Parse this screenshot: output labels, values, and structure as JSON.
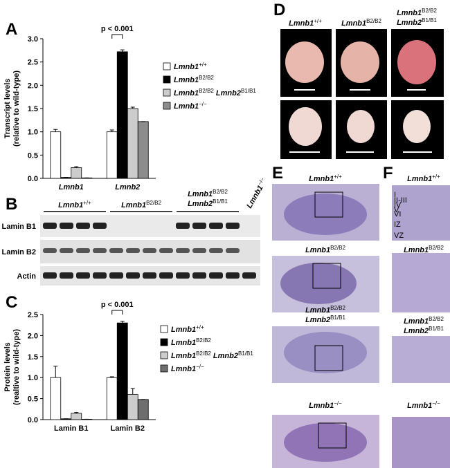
{
  "panels": [
    "A",
    "B",
    "C",
    "D",
    "E",
    "F"
  ],
  "chart_data": [
    {
      "type": "bar",
      "title": "A",
      "ylabel": [
        "Transcript levels",
        "(relative to wild-type)"
      ],
      "categories": [
        "Lmnb1",
        "Lmnb2"
      ],
      "annotation": "p < 0.001",
      "ylim": [
        0,
        3
      ],
      "yticks": [
        {
          "value": 0,
          "label": "0.0"
        },
        {
          "value": 0.5,
          "label": "0.5"
        },
        {
          "value": 1,
          "label": "1.0"
        },
        {
          "value": 1.5,
          "label": "1.5"
        },
        {
          "value": 2,
          "label": "2.0"
        },
        {
          "value": 2.5,
          "label": "2.5"
        },
        {
          "value": 3,
          "label": "3.0"
        }
      ],
      "series": [
        {
          "name": [
            [
              "Lmnb1",
              "+/+"
            ]
          ],
          "color": "#ffffff",
          "values": [
            1.0,
            1.0
          ],
          "errors": [
            0.05,
            0.04
          ]
        },
        {
          "name": [
            [
              "Lmnb1",
              "B2/B2"
            ]
          ],
          "color": "#000000",
          "values": [
            0.02,
            2.72
          ],
          "errors": [
            0,
            0.04
          ]
        },
        {
          "name": [
            [
              "Lmnb1",
              "B2/B2"
            ],
            [
              "Lmnb2",
              "B1/B1"
            ]
          ],
          "color": "#cccccc",
          "values": [
            0.23,
            1.5
          ],
          "errors": [
            0.02,
            0.03
          ]
        },
        {
          "name": [
            [
              "Lmnb1",
              "−/−"
            ]
          ],
          "color": "#8c8c8c",
          "values": [
            0.01,
            1.22
          ],
          "errors": [
            0,
            0
          ]
        }
      ]
    },
    {
      "type": "bar",
      "title": "C",
      "ylabel": [
        "Protein levels",
        "(realtive to wild-type)"
      ],
      "categories": [
        "Lamin B1",
        "Lamin B2"
      ],
      "annotation": "p < 0.001",
      "ylim": [
        0,
        2.5
      ],
      "yticks": [
        {
          "value": 0,
          "label": "0.0"
        },
        {
          "value": 0.5,
          "label": "0.5"
        },
        {
          "value": 1,
          "label": "1.0"
        },
        {
          "value": 1.5,
          "label": "1.5"
        },
        {
          "value": 2,
          "label": "2.0"
        },
        {
          "value": 2.5,
          "label": "2.5"
        }
      ],
      "series": [
        {
          "name": [
            [
              "Lmnb1",
              "+/+"
            ]
          ],
          "color": "#ffffff",
          "values": [
            1.0,
            1.0
          ],
          "errors": [
            0.27,
            0.02
          ]
        },
        {
          "name": [
            [
              "Lmnb1",
              "B2/B2"
            ]
          ],
          "color": "#000000",
          "values": [
            0.02,
            2.3
          ],
          "errors": [
            0,
            0.04
          ]
        },
        {
          "name": [
            [
              "Lmnb1",
              "B2/B2"
            ],
            [
              "Lmnb2",
              "B1/B1"
            ]
          ],
          "color": "#cccccc",
          "values": [
            0.15,
            0.6
          ],
          "errors": [
            0.02,
            0.14
          ]
        },
        {
          "name": [
            [
              "Lmnb1",
              "−/−"
            ]
          ],
          "color": "#6e6e6e",
          "values": [
            0.01,
            0.48
          ],
          "errors": [
            0,
            0
          ]
        }
      ]
    }
  ],
  "blot": {
    "rows": [
      "Lamin B1",
      "Lamin B2",
      "Actin"
    ],
    "groups": [
      [
        [
          "Lmnb1",
          "+/+"
        ]
      ],
      [
        [
          "Lmnb1",
          "B2/B2"
        ]
      ],
      [
        [
          "Lmnb1",
          "B2/B2"
        ],
        [
          "Lmnb2",
          "B1/B1"
        ]
      ],
      [
        [
          "Lmnb1",
          "−/−"
        ]
      ]
    ]
  },
  "embryos": {
    "genotypes": [
      [
        [
          "Lmnb1",
          "+/+"
        ]
      ],
      [
        [
          "Lmnb1",
          "B2/B2"
        ]
      ],
      [
        [
          "Lmnb1",
          "B2/B2"
        ],
        [
          "Lmnb2",
          "B1/B1"
        ]
      ]
    ]
  },
  "histology": {
    "genotypes": [
      [
        [
          "Lmnb1",
          "+/+"
        ]
      ],
      [
        [
          "Lmnb1",
          "B2/B2"
        ]
      ],
      [
        [
          "Lmnb1",
          "B2/B2"
        ],
        [
          "Lmnb2",
          "B1/B1"
        ]
      ],
      [
        [
          "Lmnb1",
          "−/−"
        ]
      ]
    ],
    "layers": [
      "I",
      "II-III",
      "IV",
      "V",
      "VI",
      "IZ",
      "VZ"
    ]
  }
}
